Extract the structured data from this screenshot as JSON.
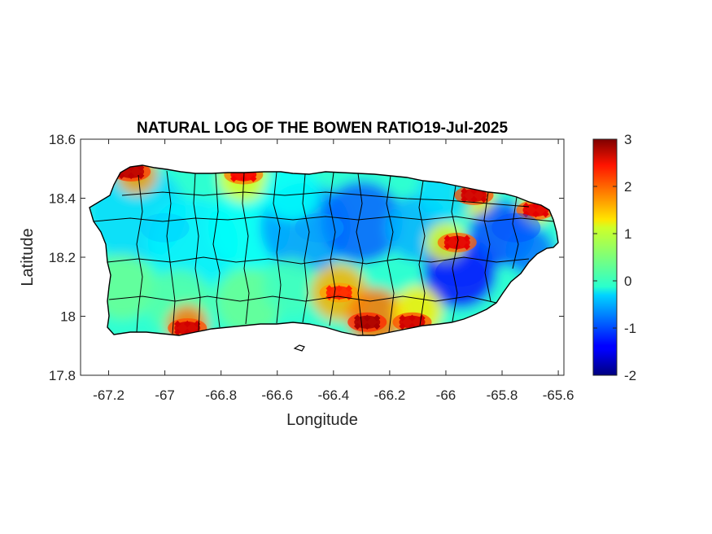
{
  "chart_data": {
    "type": "heatmap",
    "title": "NATURAL LOG OF THE BOWEN RATIO19-Jul-2025",
    "xlabel": "Longitude",
    "ylabel": "Latitude",
    "xlim": [
      -67.3,
      -65.58
    ],
    "ylim": [
      17.8,
      18.6
    ],
    "xticks": [
      -67.2,
      -67,
      -66.8,
      -66.6,
      -66.4,
      -66.2,
      -66,
      -65.8,
      -65.6
    ],
    "xtick_labels": [
      "-67.2",
      "-67",
      "-66.8",
      "-66.6",
      "-66.4",
      "-66.2",
      "-66",
      "-65.8",
      "-65.6"
    ],
    "yticks": [
      17.8,
      18,
      18.2,
      18.4,
      18.6
    ],
    "ytick_labels": [
      "17.8",
      "18",
      "18.2",
      "18.4",
      "18.6"
    ],
    "colorbar": {
      "colormap": "jet",
      "range": [
        -2,
        3
      ],
      "ticks": [
        3,
        2,
        1,
        0,
        -1,
        -2
      ],
      "tick_labels": [
        "3",
        "2",
        "1",
        "0",
        "-1",
        "-2"
      ],
      "placement": "right"
    },
    "grid": false,
    "hotspots": [
      {
        "area": "northwest coast",
        "lon": -67.12,
        "lat": 18.49,
        "value": 2.7
      },
      {
        "area": "north coast",
        "lon": -66.72,
        "lat": 18.48,
        "value": 2.4
      },
      {
        "area": "southwest coast",
        "lon": -66.92,
        "lat": 17.96,
        "value": 2.6
      },
      {
        "area": "south-central coast",
        "lon": -66.28,
        "lat": 17.98,
        "value": 2.8
      },
      {
        "area": "south coast east",
        "lon": -66.12,
        "lat": 17.98,
        "value": 2.6
      },
      {
        "area": "south-central interior",
        "lon": -66.38,
        "lat": 18.08,
        "value": 2.2
      },
      {
        "area": "east-central",
        "lon": -65.96,
        "lat": 18.25,
        "value": 2.5
      },
      {
        "area": "northeast coast",
        "lon": -65.9,
        "lat": 18.41,
        "value": 2.6
      },
      {
        "area": "far northeast",
        "lon": -65.68,
        "lat": 18.36,
        "value": 2.5
      }
    ],
    "cool_areas": [
      {
        "area": "west interior",
        "lon": -67.0,
        "lat": 18.3,
        "value": -0.4
      },
      {
        "area": "central interior",
        "lon": -66.45,
        "lat": 18.3,
        "value": -0.6
      },
      {
        "area": "east interior",
        "lon": -65.95,
        "lat": 18.15,
        "value": -1.2
      },
      {
        "area": "northeast interior",
        "lon": -65.75,
        "lat": 18.3,
        "value": -1.0
      }
    ]
  }
}
